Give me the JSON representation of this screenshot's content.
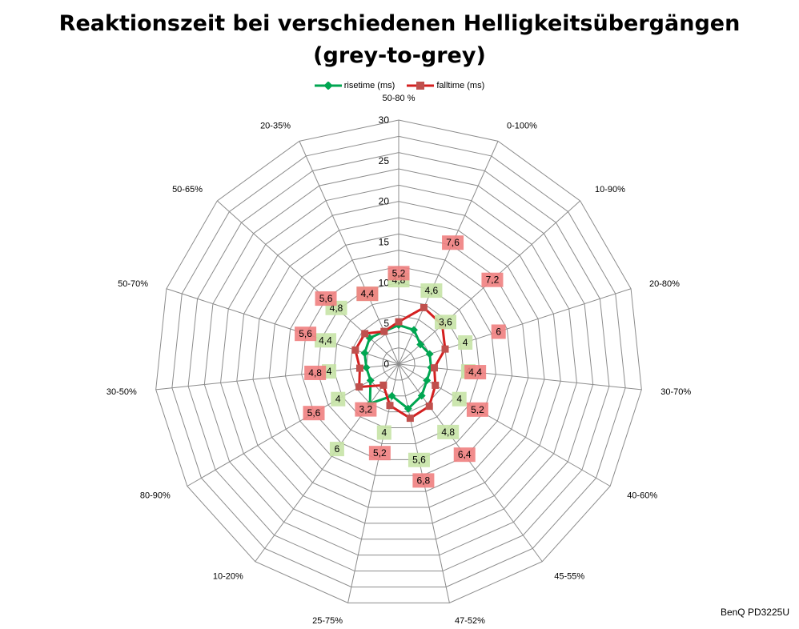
{
  "chart_data": {
    "type": "radar",
    "title_line1": "Reaktionszeit bei verschiedenen Helligkeitsübergängen",
    "title_line2": "(grey-to-grey)",
    "categories": [
      "50-80 %",
      "0-100%",
      "10-90%",
      "20-80%",
      "30-70%",
      "40-60%",
      "45-55%",
      "47-52%",
      "25-75%",
      "10-20%",
      "80-90%",
      "30-50%",
      "50-70%",
      "50-65%",
      "20-35%"
    ],
    "rlim": [
      0,
      30
    ],
    "ticks": [
      0,
      5,
      10,
      15,
      20,
      25,
      30
    ],
    "grid": true,
    "legend_position": "top",
    "series": [
      {
        "name": "risetime (ms)",
        "color": "#00a651",
        "label_bg": "#c6e3a6",
        "values": [
          4.8,
          4.6,
          3.6,
          4,
          4,
          4,
          4.8,
          5.6,
          4,
          6,
          4,
          4,
          4.4,
          4.8,
          4.4
        ],
        "labels": [
          "4,8",
          "4,6",
          "3,6",
          "4",
          "4",
          "4",
          "4,8",
          "5,6",
          "4",
          "6",
          "4",
          "4",
          "4,4",
          "4,8",
          "4,4"
        ]
      },
      {
        "name": "falltime (ms)",
        "color": "#d42020",
        "label_bg": "#f08080",
        "values": [
          5.2,
          7.6,
          7.2,
          6,
          4.4,
          5.2,
          6.4,
          6.8,
          5.2,
          3.2,
          5.6,
          4.8,
          5.6,
          5.6,
          4.4
        ],
        "labels": [
          "5,2",
          "7,6",
          "7,2",
          "6",
          "4,4",
          "5,2",
          "6,4",
          "6,8",
          "5,2",
          "3,2",
          "5,6",
          "4,8",
          "5,6",
          "5,6",
          "4,4"
        ]
      }
    ]
  },
  "watermark": "BenQ PD3225U"
}
